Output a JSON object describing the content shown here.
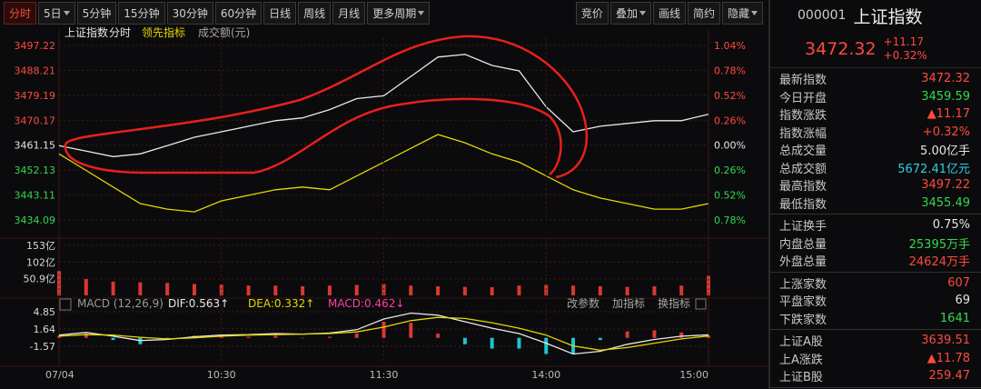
{
  "toolbar": {
    "tabs": [
      "分时",
      "5日",
      "5分钟",
      "15分钟",
      "30分钟",
      "60分钟",
      "日线",
      "周线",
      "月线",
      "更多周期"
    ],
    "right": [
      "竞价",
      "叠加",
      "画线",
      "简约",
      "隐藏"
    ]
  },
  "header": {
    "code": "000001",
    "name": "上证指数",
    "price": "3472.32",
    "change": "+11.17",
    "pct": "+0.32%"
  },
  "stats": [
    [
      {
        "label": "最新指数",
        "value": "3472.32",
        "color": "#ff4a3d"
      },
      {
        "label": "今日开盘",
        "value": "3459.59",
        "color": "#33d94a"
      },
      {
        "label": "指数涨跌",
        "value": "▲11.17",
        "color": "#ff4a3d"
      },
      {
        "label": "指数涨幅",
        "value": "+0.32%",
        "color": "#ff4a3d"
      },
      {
        "label": "总成交量",
        "value": "5.00亿手",
        "color": "#e6e6e6"
      },
      {
        "label": "总成交额",
        "value": "5672.41亿元",
        "color": "#2fd0e0"
      },
      {
        "label": "最高指数",
        "value": "3497.22",
        "color": "#ff4a3d"
      },
      {
        "label": "最低指数",
        "value": "3455.49",
        "color": "#33d94a"
      }
    ],
    [
      {
        "label": "上证换手",
        "value": "0.75%",
        "color": "#e6e6e6"
      },
      {
        "label": "内盘总量",
        "value": "25395万手",
        "color": "#33d94a"
      },
      {
        "label": "外盘总量",
        "value": "24624万手",
        "color": "#ff4a3d"
      }
    ],
    [
      {
        "label": "上涨家数",
        "value": "607",
        "color": "#ff4a3d"
      },
      {
        "label": "平盘家数",
        "value": "69",
        "color": "#e6e6e6"
      },
      {
        "label": "下跌家数",
        "value": "1641",
        "color": "#33d94a"
      }
    ],
    [
      {
        "label": "上证A股",
        "value": "3639.51",
        "color": "#ff4a3d"
      },
      {
        "label": "上A涨跌",
        "value": "▲11.78",
        "color": "#ff4a3d"
      },
      {
        "label": "上证B股",
        "value": "259.47",
        "color": "#ff4a3d"
      }
    ]
  ],
  "chart_data": [
    {
      "type": "line",
      "title": "上证指数",
      "subtitle": "成交额(元)",
      "x": [
        0,
        10,
        20,
        30,
        40,
        50,
        60,
        70,
        80,
        90,
        100,
        110,
        120,
        130,
        140,
        150,
        160,
        170,
        180,
        190,
        200,
        210,
        220,
        230,
        240
      ],
      "xlim": [
        0,
        240
      ],
      "series": [
        {
          "name": "分时",
          "color": "#e8e8e8",
          "values": [
            3461,
            3459,
            3457,
            3458,
            3461,
            3464,
            3466,
            3468,
            3470,
            3471,
            3474,
            3478,
            3479,
            3486,
            3493,
            3494,
            3490,
            3488,
            3475,
            3466,
            3468,
            3469,
            3470,
            3470,
            3472.32
          ]
        },
        {
          "name": "领先指标",
          "color": "#e5d700",
          "values": [
            3458,
            3452,
            3446,
            3440,
            3438,
            3437,
            3441,
            3443,
            3445,
            3446,
            3445,
            3450,
            3455,
            3460,
            3465,
            3462,
            3458,
            3455,
            3450,
            3445,
            3442,
            3440,
            3438,
            3438,
            3440
          ]
        }
      ],
      "ylim": [
        3434.09,
        3497.22
      ],
      "yticks": [
        3497.22,
        3488.21,
        3479.19,
        3470.17,
        3461.15,
        3452.13,
        3443.11,
        3434.09
      ],
      "y2lim": [
        -0.78,
        1.04
      ],
      "y2ticks": [
        {
          "value": 1.04,
          "label": "1.04%"
        },
        {
          "value": 0.78,
          "label": "0.78%"
        },
        {
          "value": 0.52,
          "label": "0.52%"
        },
        {
          "value": 0.26,
          "label": "0.26%"
        },
        {
          "value": 0,
          "label": "0.00%"
        },
        {
          "value": -0.26,
          "label": "0.26%"
        },
        {
          "value": -0.52,
          "label": "0.52%"
        },
        {
          "value": -0.78,
          "label": "0.78%"
        }
      ],
      "grid": true
    },
    {
      "type": "bar",
      "color": "#d8392f",
      "x": [
        0,
        10,
        20,
        30,
        40,
        50,
        60,
        70,
        80,
        90,
        100,
        110,
        120,
        130,
        140,
        150,
        160,
        170,
        180,
        190,
        200,
        210,
        220,
        230,
        240
      ],
      "xlim": [
        0,
        240
      ],
      "values": [
        75,
        50,
        42,
        40,
        38,
        35,
        33,
        30,
        30,
        28,
        30,
        32,
        35,
        30,
        28,
        26,
        25,
        30,
        32,
        30,
        28,
        26,
        28,
        30,
        60
      ],
      "ylim": [
        0,
        153
      ],
      "yticks": [
        {
          "value": 153,
          "label": "153亿"
        },
        {
          "value": 102,
          "label": "102亿"
        },
        {
          "value": 50.9,
          "label": "50.9亿"
        }
      ],
      "grid": true
    },
    {
      "type": "line",
      "title": "MACD (12,26,9)",
      "readouts": [
        "DIF:0.563↑",
        "DEA:0.332↑",
        "MACD:0.462↓"
      ],
      "actions": [
        "改参数",
        "加指标",
        "换指标"
      ],
      "x": [
        0,
        10,
        20,
        30,
        40,
        50,
        60,
        70,
        80,
        90,
        100,
        110,
        120,
        130,
        140,
        150,
        160,
        170,
        180,
        190,
        200,
        210,
        220,
        230,
        240
      ],
      "xlim": [
        0,
        240
      ],
      "xticks": [
        {
          "value": 0,
          "label": "07/04"
        },
        {
          "value": 60,
          "label": "10:30"
        },
        {
          "value": 120,
          "label": "11:30"
        },
        {
          "value": 180,
          "label": "14:00"
        },
        {
          "value": 240,
          "label": "15:00"
        }
      ],
      "series": [
        {
          "name": "MACD",
          "type": "bar",
          "color": "#d8392f",
          "color_negative": "#1fc4cf",
          "values": [
            0.4,
            0.8,
            -0.4,
            -1.2,
            -0.2,
            0.4,
            0.4,
            0.2,
            0.4,
            0,
            0.2,
            0.8,
            3.0,
            2.8,
            0.8,
            -1.2,
            -2.0,
            -2.0,
            -3.0,
            -3.0,
            -0.4,
            1.2,
            1.4,
            1.0,
            0.462
          ]
        },
        {
          "name": "DIF",
          "color": "#e8e8e8",
          "values": [
            0.5,
            1.0,
            0.3,
            -0.5,
            -0.3,
            0.2,
            0.5,
            0.6,
            0.8,
            0.7,
            0.9,
            1.5,
            3.5,
            4.6,
            4.2,
            3.0,
            1.8,
            0.8,
            -1.0,
            -3.0,
            -2.5,
            -1.2,
            -0.3,
            0.3,
            0.563
          ]
        },
        {
          "name": "DEA",
          "color": "#e5d700",
          "values": [
            0.3,
            0.6,
            0.5,
            0.1,
            -0.2,
            0,
            0.3,
            0.5,
            0.6,
            0.7,
            0.8,
            1.1,
            2.0,
            3.2,
            3.8,
            3.6,
            2.8,
            1.8,
            0.5,
            -1.5,
            -2.3,
            -1.8,
            -1.0,
            -0.2,
            0.332
          ]
        }
      ],
      "ylim": [
        -4.78,
        4.85
      ],
      "yticks": [
        4.85,
        1.64,
        -1.57
      ],
      "grid": true
    }
  ]
}
